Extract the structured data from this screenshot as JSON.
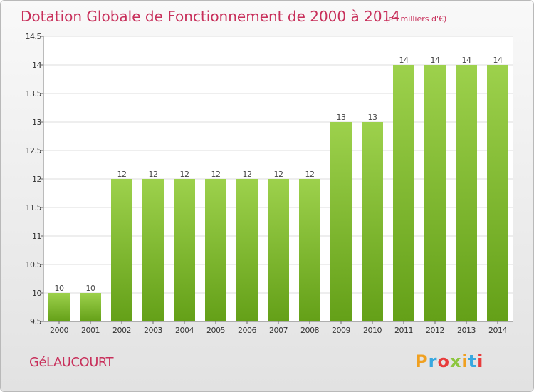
{
  "chart_data": {
    "type": "bar",
    "title": "Dotation Globale de Fonctionnement de 2000 à 2014",
    "subtitle": "(en milliers d'€)",
    "categories": [
      "2000",
      "2001",
      "2002",
      "2003",
      "2004",
      "2005",
      "2006",
      "2007",
      "2008",
      "2009",
      "2010",
      "2011",
      "2012",
      "2013",
      "2014"
    ],
    "values": [
      10,
      10,
      12,
      12,
      12,
      12,
      12,
      12,
      12,
      13,
      13,
      14,
      14,
      14,
      14
    ],
    "ylim": [
      9.5,
      14.5
    ],
    "yticks": [
      9.5,
      10,
      10.5,
      11,
      11.5,
      12,
      12.5,
      13,
      13.5,
      14,
      14.5
    ],
    "ytick_labels": [
      "9.5",
      "10",
      "10.5",
      "11",
      "11.5",
      "12",
      "12.5",
      "13",
      "13.5",
      "14",
      "14.5"
    ],
    "grid": true,
    "bar_color_top": "#9dd14c",
    "bar_color_bottom": "#64a018"
  },
  "footer": {
    "place": "GéLAUCOURT",
    "logo": {
      "letters": [
        "P",
        "r",
        "o",
        "x",
        "i",
        "t",
        "i"
      ],
      "colors": [
        "#f0a020",
        "#38a8e0",
        "#e83c3c",
        "#8dc63f",
        "#f0a020",
        "#38a8e0",
        "#e83c3c"
      ]
    }
  }
}
